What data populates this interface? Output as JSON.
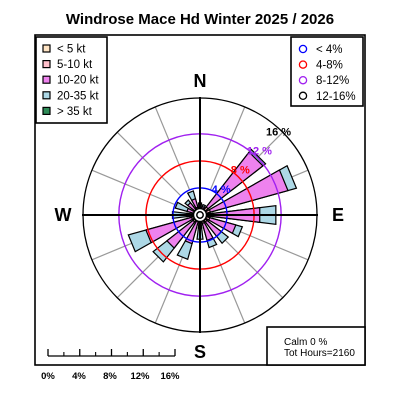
{
  "chart_data": {
    "type": "windrose",
    "title": "Windrose  Mace Hd Winter 2025 / 2026",
    "cardinals": {
      "n": "N",
      "e": "E",
      "s": "S",
      "w": "W"
    },
    "speed_legend": [
      {
        "label": "< 5  kt",
        "color": "#FFE4C4"
      },
      {
        "label": "5-10 kt",
        "color": "#FFC0CB"
      },
      {
        "label": "10-20 kt",
        "color": "#EE82EE"
      },
      {
        "label": "20-35 kt",
        "color": "#ADD8E6"
      },
      {
        "label": "> 35 kt",
        "color": "#2E8B57"
      }
    ],
    "ring_legend": [
      {
        "label": "< 4%",
        "color": "#0000FF"
      },
      {
        "label": "4-8%",
        "color": "#FF0000"
      },
      {
        "label": "8-12%",
        "color": "#A020F0"
      },
      {
        "label": "12-16%",
        "color": "#000000"
      }
    ],
    "rings": [
      {
        "value": 4,
        "label": "4 %",
        "color": "#0000FF"
      },
      {
        "value": 8,
        "label": "8 %",
        "color": "#FF0000"
      },
      {
        "value": 12,
        "label": "12 %",
        "color": "#A020F0"
      },
      {
        "value": 16,
        "label": "16 %",
        "color": "#000000"
      }
    ],
    "scale_labels": [
      "0%",
      "4%",
      "8%",
      "12%",
      "16%"
    ],
    "rmax": 17.3,
    "directions": [
      0,
      22.5,
      45,
      67.5,
      90,
      112.5,
      135,
      157.5,
      180,
      202.5,
      225,
      247.5,
      270,
      292.5,
      315,
      337.5
    ],
    "cumulative_percent": [
      [
        0.4,
        1.0,
        1.5,
        1.8
      ],
      [
        0.3,
        0.8,
        1.3,
        1.6
      ],
      [
        0.5,
        1.5,
        11.8,
        12.3
      ],
      [
        0.6,
        1.6,
        13.5,
        14.8
      ],
      [
        0.6,
        2.0,
        8.9,
        11.3
      ],
      [
        0.5,
        1.5,
        5.5,
        6.5
      ],
      [
        0.5,
        1.3,
        4.0,
        5.3
      ],
      [
        0.4,
        1.3,
        3.9,
        5.0
      ],
      [
        0.4,
        1.1,
        2.0,
        3.6
      ],
      [
        0.4,
        1.0,
        4.4,
        6.8
      ],
      [
        0.4,
        1.3,
        6.2,
        8.8
      ],
      [
        0.5,
        1.3,
        8.3,
        11.0
      ],
      [
        0.5,
        1.0,
        2.0,
        4.1
      ],
      [
        0.4,
        1.0,
        2.0,
        3.8
      ],
      [
        0.3,
        1.0,
        2.3,
        2.8
      ],
      [
        0.4,
        1.2,
        2.5,
        3.7
      ]
    ],
    "calm_label": "Calm 0 %",
    "hours_label": "Tot Hours=2160"
  }
}
